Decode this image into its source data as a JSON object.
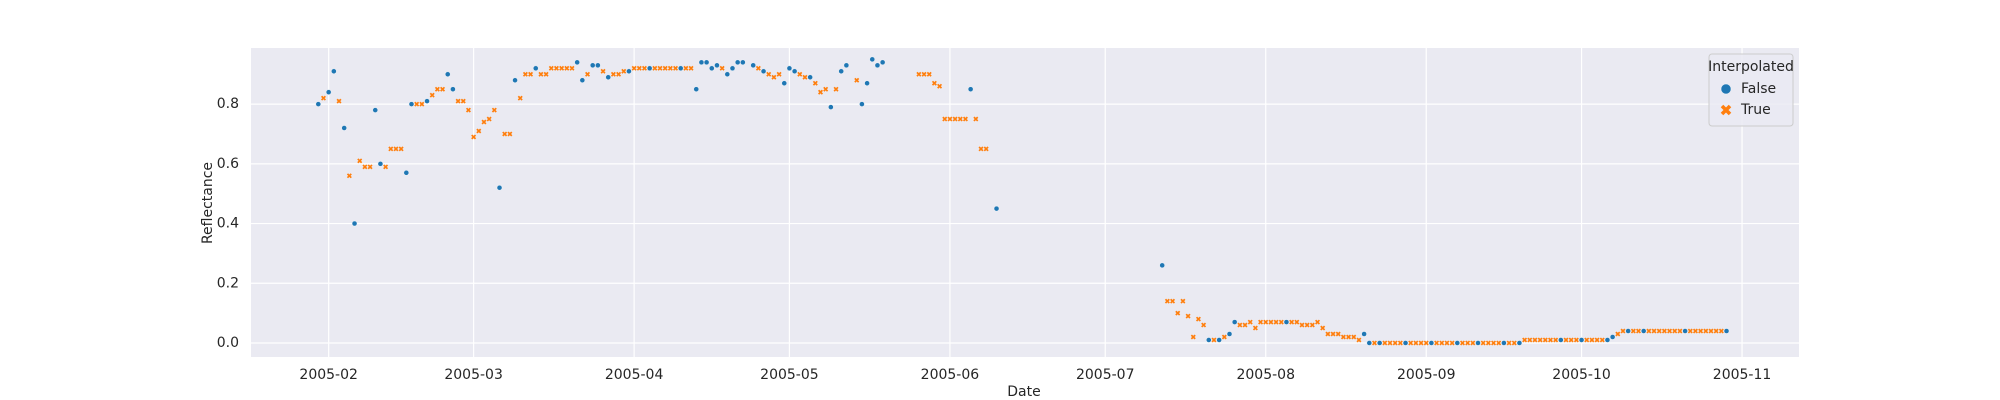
{
  "chart_data": {
    "type": "scatter",
    "xlabel": "Date",
    "ylabel": "Reflectance",
    "legend_title": "Interpolated",
    "legend": "upper right",
    "grid": true,
    "background": "#eaeaf2",
    "xlim": [
      12800,
      13099
    ],
    "ylim": [
      -0.047,
      0.988
    ],
    "xticks": [
      {
        "value": 12815,
        "label": "2005-02"
      },
      {
        "value": 12843,
        "label": "2005-03"
      },
      {
        "value": 12874,
        "label": "2005-04"
      },
      {
        "value": 12904,
        "label": "2005-05"
      },
      {
        "value": 12935,
        "label": "2005-06"
      },
      {
        "value": 12965,
        "label": "2005-07"
      },
      {
        "value": 12996,
        "label": "2005-08"
      },
      {
        "value": 13027,
        "label": "2005-09"
      },
      {
        "value": 13057,
        "label": "2005-10"
      },
      {
        "value": 13088,
        "label": "2005-11"
      }
    ],
    "yticks": [
      {
        "value": 0,
        "label": "0.0"
      },
      0.2,
      0.4,
      0.6,
      0.8
    ],
    "series": [
      {
        "name": "False",
        "color": "#1f77b4",
        "marker": "circle",
        "x": [
          12813,
          12815,
          12816,
          12818,
          12820,
          12824,
          12825,
          12830,
          12831,
          12834,
          12838,
          12839,
          12848,
          12851,
          12855,
          12863,
          12864,
          12866,
          12867,
          12869,
          12873,
          12877,
          12883,
          12886,
          12887,
          12888,
          12889,
          12890,
          12892,
          12893,
          12894,
          12895,
          12897,
          12899,
          12903,
          12904,
          12905,
          12908,
          12912,
          12914,
          12915,
          12918,
          12919,
          12920,
          12921,
          12922,
          12939,
          12944,
          12976,
          12985,
          12987,
          12989,
          12990,
          13000,
          13015,
          13016,
          13018,
          13023,
          13028,
          13033,
          13037,
          13042,
          13045,
          13053,
          13057,
          13062,
          13063,
          13066,
          13069,
          13077,
          13085
        ],
        "values": [
          0.8,
          0.84,
          0.91,
          0.72,
          0.4,
          0.78,
          0.6,
          0.57,
          0.8,
          0.81,
          0.9,
          0.85,
          0.52,
          0.88,
          0.92,
          0.94,
          0.88,
          0.93,
          0.93,
          0.89,
          0.91,
          0.92,
          0.92,
          0.85,
          0.94,
          0.94,
          0.92,
          0.93,
          0.9,
          0.92,
          0.94,
          0.94,
          0.93,
          0.91,
          0.87,
          0.92,
          0.91,
          0.89,
          0.79,
          0.91,
          0.93,
          0.8,
          0.87,
          0.95,
          0.93,
          0.94,
          0.85,
          0.45,
          0.26,
          0.01,
          0.01,
          0.03,
          0.07,
          0.07,
          0.03,
          0,
          0,
          0,
          0,
          0,
          0,
          0,
          0,
          0.01,
          0.01,
          0.01,
          0.02,
          0.04,
          0.04,
          0.04,
          0.04
        ]
      },
      {
        "name": "True",
        "color": "#ff7f0e",
        "marker": "x",
        "x": [
          12814,
          12817,
          12819,
          12821,
          12822,
          12823,
          12826,
          12827,
          12828,
          12829,
          12832,
          12833,
          12835,
          12836,
          12837,
          12840,
          12841,
          12842,
          12843,
          12844,
          12845,
          12846,
          12847,
          12849,
          12850,
          12852,
          12853,
          12854,
          12856,
          12857,
          12858,
          12859,
          12860,
          12861,
          12862,
          12865,
          12868,
          12870,
          12871,
          12872,
          12874,
          12875,
          12876,
          12878,
          12879,
          12880,
          12881,
          12882,
          12884,
          12885,
          12891,
          12898,
          12900,
          12901,
          12902,
          12906,
          12907,
          12909,
          12910,
          12911,
          12913,
          12917,
          12929,
          12930,
          12931,
          12932,
          12933,
          12934,
          12935,
          12936,
          12937,
          12938,
          12940,
          12941,
          12942,
          12977,
          12978,
          12979,
          12980,
          12981,
          12982,
          12983,
          12984,
          12986,
          12988,
          12991,
          12992,
          12993,
          12994,
          12995,
          12996,
          12997,
          12998,
          12999,
          13001,
          13002,
          13003,
          13004,
          13005,
          13006,
          13007,
          13008,
          13009,
          13010,
          13011,
          13012,
          13013,
          13014,
          13017,
          13019,
          13020,
          13021,
          13022,
          13024,
          13025,
          13026,
          13027,
          13029,
          13030,
          13031,
          13032,
          13034,
          13035,
          13036,
          13038,
          13039,
          13040,
          13041,
          13043,
          13044,
          13046,
          13047,
          13048,
          13049,
          13050,
          13051,
          13052,
          13054,
          13055,
          13056,
          13058,
          13059,
          13060,
          13061,
          13064,
          13065,
          13067,
          13068,
          13070,
          13071,
          13072,
          13073,
          13074,
          13075,
          13076,
          13078,
          13079,
          13080,
          13081,
          13082,
          13083,
          13084
        ],
        "values": [
          0.82,
          0.81,
          0.56,
          0.61,
          0.59,
          0.59,
          0.59,
          0.65,
          0.65,
          0.65,
          0.8,
          0.8,
          0.83,
          0.85,
          0.85,
          0.81,
          0.81,
          0.78,
          0.69,
          0.71,
          0.74,
          0.75,
          0.78,
          0.7,
          0.7,
          0.82,
          0.9,
          0.9,
          0.9,
          0.9,
          0.92,
          0.92,
          0.92,
          0.92,
          0.92,
          0.9,
          0.91,
          0.9,
          0.9,
          0.91,
          0.92,
          0.92,
          0.92,
          0.92,
          0.92,
          0.92,
          0.92,
          0.92,
          0.92,
          0.92,
          0.92,
          0.92,
          0.9,
          0.89,
          0.9,
          0.9,
          0.89,
          0.87,
          0.84,
          0.85,
          0.85,
          0.88,
          0.9,
          0.9,
          0.9,
          0.87,
          0.86,
          0.75,
          0.75,
          0.75,
          0.75,
          0.75,
          0.75,
          0.65,
          0.65,
          0.14,
          0.14,
          0.1,
          0.14,
          0.09,
          0.02,
          0.08,
          0.06,
          0.01,
          0.02,
          0.06,
          0.06,
          0.07,
          0.05,
          0.07,
          0.07,
          0.07,
          0.07,
          0.07,
          0.07,
          0.07,
          0.06,
          0.06,
          0.06,
          0.07,
          0.05,
          0.03,
          0.03,
          0.03,
          0.02,
          0.02,
          0.02,
          0.01,
          0,
          0,
          0,
          0,
          0,
          0,
          0,
          0,
          0,
          0,
          0,
          0,
          0,
          0,
          0,
          0,
          0,
          0,
          0,
          0,
          0,
          0,
          0.01,
          0.01,
          0.01,
          0.01,
          0.01,
          0.01,
          0.01,
          0.01,
          0.01,
          0.01,
          0.01,
          0.01,
          0.01,
          0.01,
          0.03,
          0.04,
          0.04,
          0.04,
          0.04,
          0.04,
          0.04,
          0.04,
          0.04,
          0.04,
          0.04,
          0.04,
          0.04,
          0.04,
          0.04,
          0.04,
          0.04,
          0.04
        ]
      }
    ]
  }
}
